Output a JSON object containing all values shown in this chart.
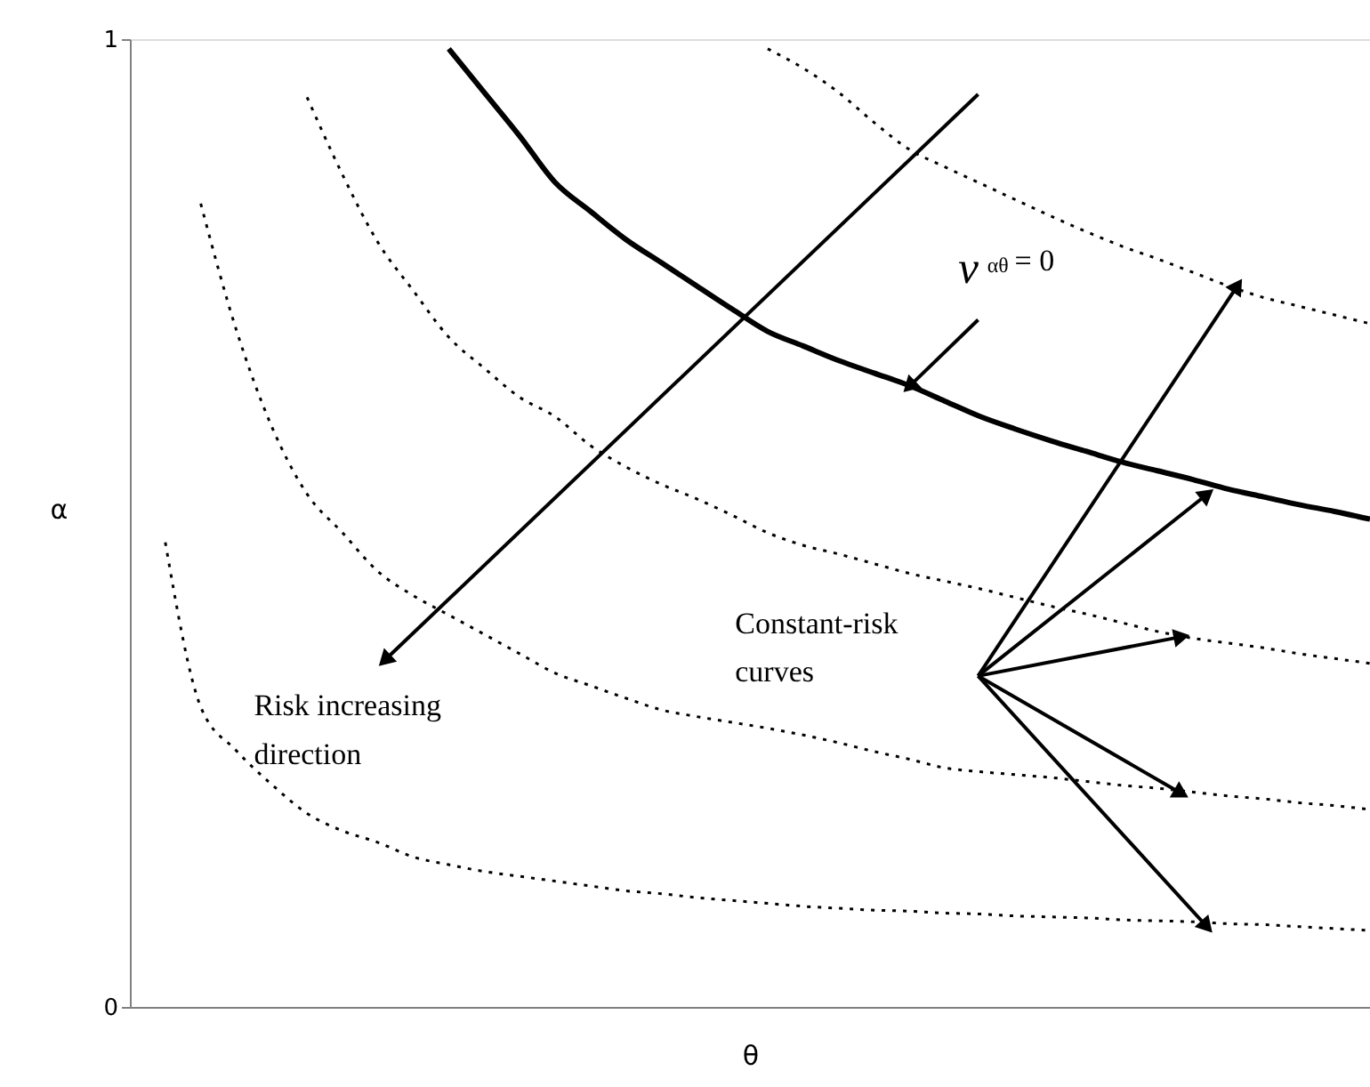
{
  "chart_data": {
    "type": "line",
    "xlabel": "θ",
    "ylabel": "α",
    "categories": [
      null,
      null,
      null,
      null,
      null,
      null,
      null,
      null,
      null,
      null,
      null,
      null,
      null,
      null,
      null,
      null,
      null,
      null,
      null,
      null,
      null,
      null,
      null,
      null,
      null,
      null,
      null,
      null,
      null,
      null,
      null,
      null,
      null,
      null,
      null,
      null
    ],
    "series": [
      {
        "color": "#000000",
        "line_style": "dotted",
        "values": [
          null,
          0.48,
          0.31,
          0.265,
          0.23,
          0.2,
          0.182,
          0.17,
          0.155,
          0.147,
          0.14,
          0.135,
          0.13,
          0.125,
          0.12,
          0.117,
          0.113,
          0.11,
          0.107,
          0.104,
          0.102,
          0.1,
          0.099,
          0.097,
          0.096,
          0.094,
          0.093,
          0.092,
          0.09,
          0.089,
          0.088,
          0.086,
          0.085,
          0.083,
          0.081,
          0.079
        ]
      },
      {
        "color": "#000000",
        "line_style": "dotted",
        "values": [
          null,
          null,
          0.83,
          0.7,
          0.6,
          0.53,
          0.49,
          0.45,
          0.425,
          0.405,
          0.385,
          0.365,
          0.345,
          0.332,
          0.319,
          0.307,
          0.3,
          0.294,
          0.288,
          0.281,
          0.273,
          0.264,
          0.256,
          0.247,
          0.243,
          0.24,
          0.237,
          0.233,
          0.229,
          0.226,
          0.222,
          0.218,
          0.215,
          0.211,
          0.208,
          0.204
        ]
      },
      {
        "color": "#000000",
        "line_style": "dotted",
        "values": [
          null,
          null,
          null,
          null,
          null,
          0.94,
          0.86,
          0.79,
          0.74,
          0.692,
          0.66,
          0.63,
          0.61,
          0.58,
          0.558,
          0.54,
          0.525,
          0.508,
          0.49,
          0.477,
          0.468,
          0.458,
          0.448,
          0.44,
          0.432,
          0.423,
          0.414,
          0.406,
          0.397,
          0.388,
          0.381,
          0.376,
          0.371,
          0.365,
          0.36,
          0.355
        ]
      },
      {
        "color": "#000000",
        "line_style": "solid",
        "values": [
          null,
          null,
          null,
          null,
          null,
          null,
          null,
          null,
          null,
          0.99,
          0.945,
          0.9,
          0.852,
          0.822,
          0.793,
          0.769,
          0.745,
          0.721,
          0.698,
          0.683,
          0.668,
          0.655,
          0.642,
          0.626,
          0.61,
          0.597,
          0.585,
          0.574,
          0.563,
          0.554,
          0.545,
          0.535,
          0.527,
          0.519,
          0.512,
          0.504
        ]
      },
      {
        "color": "#000000",
        "line_style": "dotted",
        "values": [
          null,
          null,
          null,
          null,
          null,
          null,
          null,
          null,
          null,
          null,
          null,
          null,
          null,
          null,
          null,
          null,
          null,
          null,
          0.99,
          0.97,
          0.945,
          0.914,
          0.886,
          0.868,
          0.851,
          0.834,
          0.817,
          0.801,
          0.786,
          0.773,
          0.759,
          0.745,
          0.733,
          0.724,
          0.715,
          0.706
        ]
      }
    ],
    "ylim": [
      0,
      1
    ],
    "yticks": [
      0,
      1
    ],
    "grid": false,
    "tick_labels": "y",
    "marker": "none",
    "annotations": [
      "v$_{αθ}$ = 0",
      "Constant-risk\ncurves",
      "Risk increasing\ndirection"
    ]
  }
}
